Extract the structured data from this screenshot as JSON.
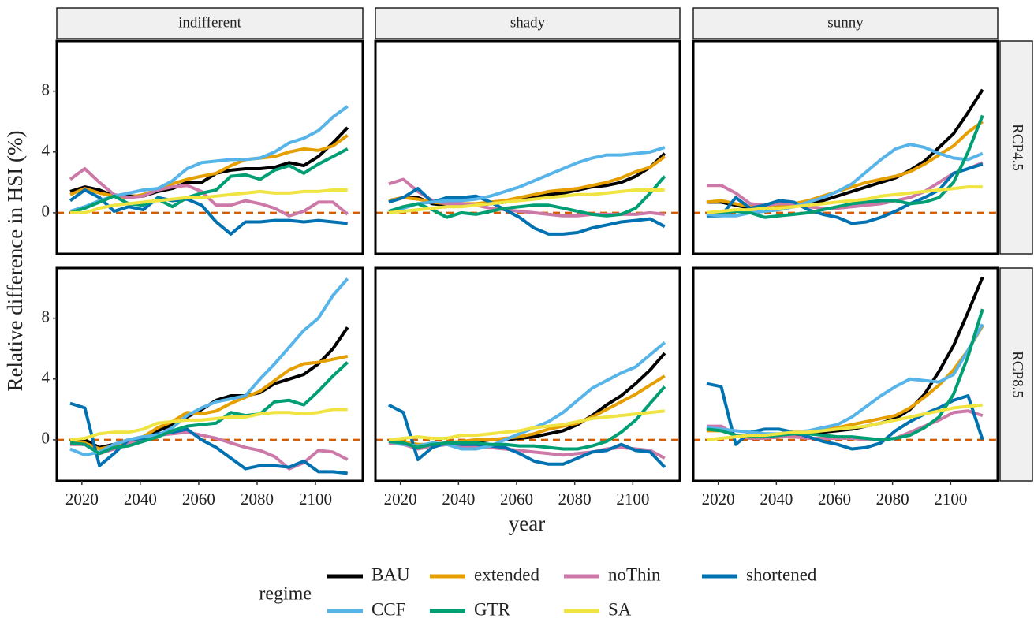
{
  "chart_data": {
    "type": "line",
    "y_label": "Relative difference in HSI (%)",
    "x_label": "year",
    "legend_title": "regime",
    "columns": [
      "indifferent",
      "shady",
      "sunny"
    ],
    "rows": [
      "RCP4.5",
      "RCP8.5"
    ],
    "x": [
      2016,
      2021,
      2026,
      2031,
      2036,
      2041,
      2046,
      2051,
      2056,
      2061,
      2066,
      2071,
      2076,
      2081,
      2086,
      2091,
      2096,
      2101,
      2106,
      2111
    ],
    "xlim": [
      2011.4,
      2116.2
    ],
    "xticks": [
      2020,
      2040,
      2060,
      2080,
      2100
    ],
    "ylim": [
      -2.7,
      11.3
    ],
    "yticks": [
      0,
      4,
      8
    ],
    "hline": 0,
    "hline_color": "#D55E00",
    "grid": false,
    "series": [
      {
        "name": "BAU",
        "color": "#000000"
      },
      {
        "name": "extended",
        "color": "#E69F00"
      },
      {
        "name": "noThin",
        "color": "#CC79A7"
      },
      {
        "name": "shortened",
        "color": "#0072B2"
      },
      {
        "name": "CCF",
        "color": "#56B4E9"
      },
      {
        "name": "GTR",
        "color": "#009E73"
      },
      {
        "name": "SA",
        "color": "#F0E442"
      }
    ],
    "panels": [
      [
        [
          [
            1.4,
            1.7,
            1.5,
            1.1,
            1.1,
            1.1,
            1.4,
            1.6,
            2.0,
            2.0,
            2.6,
            2.8,
            2.9,
            2.9,
            3.0,
            3.3,
            3.1,
            3.7,
            4.6,
            5.6
          ],
          [
            1.2,
            1.6,
            1.3,
            1.1,
            1.0,
            1.2,
            1.5,
            1.9,
            2.2,
            2.4,
            2.6,
            3.1,
            3.5,
            3.6,
            3.7,
            4.0,
            4.2,
            4.1,
            4.4,
            5.1
          ],
          [
            2.2,
            2.9,
            2.0,
            1.2,
            1.0,
            1.1,
            1.5,
            1.7,
            1.8,
            1.4,
            0.5,
            0.5,
            0.8,
            0.6,
            0.3,
            -0.2,
            0.1,
            0.7,
            0.7,
            -0.1
          ],
          [
            0.8,
            1.5,
            1.0,
            0.1,
            0.4,
            0.2,
            1.0,
            0.8,
            0.9,
            0.5,
            -0.6,
            -1.4,
            -0.6,
            -0.6,
            -0.5,
            -0.5,
            -0.6,
            -0.5,
            -0.6,
            -0.7
          ],
          [
            0.1,
            0.4,
            0.8,
            1.1,
            1.3,
            1.5,
            1.6,
            2.1,
            2.9,
            3.3,
            3.4,
            3.5,
            3.5,
            3.6,
            4.0,
            4.6,
            4.9,
            5.4,
            6.3,
            7.0
          ],
          [
            0.0,
            0.3,
            0.7,
            1.1,
            0.6,
            0.5,
            0.9,
            0.4,
            1.0,
            1.3,
            1.5,
            2.4,
            2.5,
            2.2,
            2.8,
            3.1,
            2.6,
            3.2,
            3.7,
            4.2
          ],
          [
            0.0,
            0.0,
            0.3,
            0.5,
            0.6,
            0.7,
            0.8,
            0.9,
            1.0,
            1.0,
            1.1,
            1.2,
            1.3,
            1.4,
            1.3,
            1.3,
            1.4,
            1.4,
            1.5,
            1.5
          ]
        ],
        [
          [
            0.8,
            1.0,
            1.0,
            0.6,
            0.5,
            0.5,
            0.5,
            0.6,
            0.7,
            0.9,
            1.0,
            1.2,
            1.3,
            1.5,
            1.7,
            1.8,
            2.0,
            2.4,
            3.0,
            3.9
          ],
          [
            0.8,
            1.0,
            0.9,
            0.7,
            0.6,
            0.6,
            0.6,
            0.7,
            0.8,
            1.0,
            1.2,
            1.4,
            1.5,
            1.6,
            1.8,
            2.0,
            2.3,
            2.7,
            3.0,
            3.7
          ],
          [
            1.9,
            2.2,
            1.4,
            0.8,
            0.6,
            0.6,
            0.5,
            0.3,
            0.2,
            0.1,
            0.0,
            -0.1,
            -0.2,
            -0.2,
            -0.1,
            -0.1,
            -0.1,
            -0.1,
            0.0,
            -0.1
          ],
          [
            0.7,
            1.0,
            1.6,
            0.7,
            1.0,
            1.0,
            1.1,
            0.7,
            0.2,
            -0.3,
            -1.0,
            -1.4,
            -1.4,
            -1.3,
            -1.0,
            -0.8,
            -0.6,
            -0.5,
            -0.4,
            -0.9
          ],
          [
            0.1,
            0.3,
            0.6,
            0.7,
            0.8,
            0.8,
            0.9,
            1.1,
            1.4,
            1.7,
            2.1,
            2.5,
            2.9,
            3.3,
            3.6,
            3.8,
            3.8,
            3.9,
            4.0,
            4.3
          ],
          [
            0.1,
            0.4,
            0.6,
            0.2,
            -0.3,
            0.0,
            -0.1,
            0.1,
            0.3,
            0.4,
            0.5,
            0.5,
            0.3,
            0.1,
            -0.1,
            -0.2,
            -0.1,
            0.3,
            1.3,
            2.4
          ],
          [
            0.0,
            0.1,
            0.2,
            0.3,
            0.4,
            0.4,
            0.5,
            0.6,
            0.7,
            0.8,
            0.9,
            1.0,
            1.1,
            1.2,
            1.2,
            1.3,
            1.4,
            1.5,
            1.5,
            1.5
          ]
        ],
        [
          [
            0.7,
            0.7,
            0.5,
            0.3,
            0.2,
            0.3,
            0.4,
            0.6,
            0.8,
            1.1,
            1.4,
            1.7,
            2.0,
            2.3,
            2.8,
            3.4,
            4.3,
            5.2,
            6.6,
            8.1
          ],
          [
            0.7,
            0.8,
            0.6,
            0.4,
            0.3,
            0.4,
            0.6,
            0.8,
            1.1,
            1.4,
            1.7,
            2.0,
            2.2,
            2.4,
            2.7,
            3.2,
            3.8,
            4.4,
            5.3,
            6.0
          ],
          [
            1.8,
            1.8,
            1.3,
            0.6,
            0.5,
            0.6,
            0.6,
            0.4,
            0.3,
            0.3,
            0.4,
            0.5,
            0.6,
            0.8,
            1.0,
            1.4,
            2.0,
            2.6,
            2.9,
            3.3
          ],
          [
            -0.2,
            -0.2,
            1.0,
            0.3,
            0.5,
            0.8,
            0.7,
            0.2,
            -0.1,
            -0.3,
            -0.7,
            -0.6,
            -0.3,
            0.1,
            0.6,
            1.0,
            1.5,
            2.6,
            2.9,
            3.2
          ],
          [
            -0.1,
            -0.2,
            -0.2,
            0.0,
            0.1,
            0.2,
            0.4,
            0.7,
            1.0,
            1.4,
            1.9,
            2.7,
            3.5,
            4.2,
            4.5,
            4.3,
            3.9,
            3.6,
            3.5,
            3.9
          ],
          [
            0.0,
            0.0,
            0.1,
            0.0,
            -0.3,
            -0.2,
            -0.1,
            0.0,
            0.2,
            0.4,
            0.6,
            0.7,
            0.8,
            0.8,
            0.6,
            0.7,
            1.0,
            2.0,
            4.0,
            6.4
          ],
          [
            0.0,
            0.1,
            0.2,
            0.2,
            0.3,
            0.3,
            0.4,
            0.5,
            0.6,
            0.7,
            0.8,
            0.9,
            1.1,
            1.2,
            1.3,
            1.4,
            1.5,
            1.6,
            1.7,
            1.7
          ]
        ]
      ],
      [
        [
          [
            -0.1,
            0.0,
            -0.5,
            -0.3,
            0.0,
            0.2,
            0.6,
            1.0,
            1.5,
            2.0,
            2.6,
            2.9,
            2.9,
            3.1,
            3.7,
            4.0,
            4.3,
            5.0,
            6.0,
            7.4
          ],
          [
            -0.2,
            -0.2,
            -0.6,
            -0.4,
            -0.2,
            0.2,
            0.8,
            1.2,
            1.8,
            1.7,
            1.9,
            2.4,
            2.8,
            3.2,
            3.9,
            4.6,
            5.0,
            5.1,
            5.3,
            5.5
          ],
          [
            -0.3,
            -0.3,
            -0.9,
            -0.6,
            -0.2,
            0.1,
            0.3,
            0.4,
            0.5,
            0.3,
            0.1,
            -0.2,
            -0.5,
            -0.7,
            -1.1,
            -1.9,
            -1.5,
            -0.7,
            -0.8,
            -1.3
          ],
          [
            2.4,
            2.1,
            -1.7,
            -0.9,
            0.0,
            0.1,
            0.4,
            0.5,
            0.7,
            0.0,
            -0.5,
            -1.2,
            -1.9,
            -1.7,
            -1.7,
            -1.8,
            -1.4,
            -2.1,
            -2.1,
            -2.2
          ],
          [
            -0.6,
            -1.0,
            -0.8,
            -0.3,
            0.0,
            0.2,
            0.3,
            0.8,
            1.6,
            2.1,
            2.5,
            2.7,
            2.9,
            4.0,
            5.0,
            6.1,
            7.2,
            8.0,
            9.5,
            10.6
          ],
          [
            -0.2,
            -0.3,
            -0.9,
            -0.5,
            -0.4,
            -0.1,
            0.2,
            0.6,
            0.9,
            1.0,
            1.1,
            1.8,
            1.6,
            1.7,
            2.5,
            2.6,
            2.3,
            3.2,
            4.2,
            5.1
          ],
          [
            0.0,
            0.1,
            0.4,
            0.5,
            0.5,
            0.7,
            1.1,
            1.2,
            1.3,
            1.3,
            1.4,
            1.5,
            1.5,
            1.7,
            1.8,
            1.8,
            1.7,
            1.8,
            2.0,
            2.0
          ]
        ],
        [
          [
            0.0,
            -0.1,
            -0.4,
            -0.4,
            -0.3,
            -0.2,
            -0.1,
            0.0,
            0.0,
            0.1,
            0.2,
            0.4,
            0.6,
            1.0,
            1.6,
            2.3,
            2.9,
            3.7,
            4.6,
            5.7
          ],
          [
            0.0,
            -0.1,
            -0.3,
            -0.3,
            -0.2,
            -0.1,
            0.0,
            0.0,
            0.1,
            0.2,
            0.4,
            0.7,
            0.9,
            1.1,
            1.5,
            2.0,
            2.5,
            3.0,
            3.6,
            4.2
          ],
          [
            -0.2,
            -0.3,
            -0.6,
            -0.4,
            -0.3,
            -0.4,
            -0.4,
            -0.5,
            -0.6,
            -0.7,
            -0.8,
            -0.9,
            -1.0,
            -0.9,
            -0.8,
            -0.6,
            -0.5,
            -0.6,
            -0.7,
            -1.2
          ],
          [
            2.3,
            1.8,
            -1.3,
            -0.5,
            -0.2,
            -0.3,
            -0.3,
            -0.4,
            -0.5,
            -0.9,
            -1.4,
            -1.6,
            -1.6,
            -1.2,
            -0.8,
            -0.7,
            -0.3,
            -0.7,
            -0.8,
            -1.8
          ],
          [
            -0.1,
            -0.3,
            -0.4,
            -0.2,
            -0.3,
            -0.6,
            -0.6,
            -0.4,
            0.0,
            0.4,
            0.8,
            1.2,
            1.8,
            2.6,
            3.4,
            3.9,
            4.4,
            4.8,
            5.6,
            6.4
          ],
          [
            -0.1,
            -0.2,
            -0.5,
            -0.3,
            -0.2,
            -0.2,
            -0.2,
            -0.3,
            -0.3,
            -0.4,
            -0.4,
            -0.5,
            -0.6,
            -0.6,
            -0.4,
            -0.1,
            0.5,
            1.3,
            2.4,
            3.5
          ],
          [
            0.0,
            0.1,
            0.2,
            0.1,
            0.1,
            0.3,
            0.3,
            0.4,
            0.5,
            0.6,
            0.8,
            0.9,
            1.0,
            1.2,
            1.4,
            1.5,
            1.6,
            1.7,
            1.8,
            1.9
          ]
        ],
        [
          [
            0.7,
            0.7,
            0.3,
            0.1,
            0.1,
            0.2,
            0.3,
            0.4,
            0.5,
            0.6,
            0.7,
            0.9,
            1.1,
            1.4,
            2.0,
            3.0,
            4.5,
            6.2,
            8.4,
            10.7
          ],
          [
            0.6,
            0.6,
            0.3,
            0.1,
            0.1,
            0.2,
            0.4,
            0.5,
            0.7,
            0.8,
            1.0,
            1.2,
            1.4,
            1.6,
            2.1,
            2.8,
            3.6,
            4.6,
            5.9,
            7.5
          ],
          [
            0.9,
            0.9,
            0.3,
            0.1,
            0.1,
            0.2,
            0.2,
            0.1,
            0.1,
            0.1,
            0.1,
            0.0,
            0.0,
            0.1,
            0.5,
            0.9,
            1.3,
            1.8,
            1.9,
            1.6
          ],
          [
            3.7,
            3.5,
            -0.3,
            0.5,
            0.7,
            0.7,
            0.5,
            0.2,
            -0.1,
            -0.3,
            -0.6,
            -0.5,
            -0.2,
            0.6,
            1.2,
            1.7,
            2.1,
            2.6,
            2.9,
            0.0
          ],
          [
            0.8,
            0.7,
            0.6,
            0.5,
            0.4,
            0.4,
            0.5,
            0.6,
            0.8,
            1.0,
            1.5,
            2.2,
            2.9,
            3.5,
            4.0,
            3.9,
            3.8,
            4.3,
            5.9,
            7.6
          ],
          [
            0.7,
            0.6,
            0.3,
            0.2,
            0.2,
            0.3,
            0.4,
            0.4,
            0.3,
            0.2,
            0.2,
            0.1,
            0.0,
            0.1,
            0.3,
            0.8,
            1.5,
            3.0,
            5.5,
            8.6
          ],
          [
            0.0,
            0.1,
            0.2,
            0.3,
            0.3,
            0.4,
            0.5,
            0.5,
            0.6,
            0.7,
            0.8,
            0.9,
            1.1,
            1.3,
            1.5,
            1.7,
            1.9,
            2.1,
            2.2,
            2.3
          ]
        ]
      ]
    ]
  }
}
